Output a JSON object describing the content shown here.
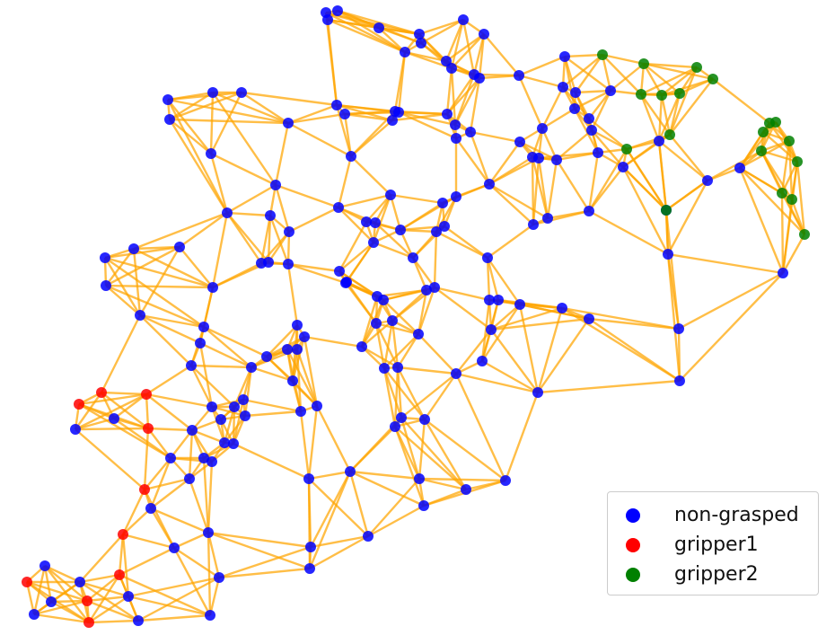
{
  "chart_data": {
    "type": "scatter",
    "title": "",
    "xlabel": "",
    "ylabel": "",
    "axes_visible": false,
    "grid": false,
    "legend_placement": "bottom-right",
    "edge_color": "#FFA500",
    "series": [
      {
        "name": "non-grasped",
        "color": "#0000FF",
        "points": [
          [
            363,
            14
          ],
          [
            376,
            12
          ],
          [
            365,
            22
          ],
          [
            422,
            31
          ],
          [
            516,
            22
          ],
          [
            467,
            38
          ],
          [
            539,
            38
          ],
          [
            469,
            48
          ],
          [
            451,
            58
          ],
          [
            497,
            68
          ],
          [
            503,
            76
          ],
          [
            528,
            83
          ],
          [
            534,
            87
          ],
          [
            578,
            84
          ],
          [
            629,
            63
          ],
          [
            627,
            97
          ],
          [
            641,
            103
          ],
          [
            680,
            101
          ],
          [
            187,
            111
          ],
          [
            237,
            103
          ],
          [
            269,
            103
          ],
          [
            189,
            133
          ],
          [
            321,
            137
          ],
          [
            375,
            117
          ],
          [
            384,
            127
          ],
          [
            440,
            124
          ],
          [
            444,
            125
          ],
          [
            437,
            134
          ],
          [
            498,
            127
          ],
          [
            507,
            139
          ],
          [
            508,
            154
          ],
          [
            524,
            147
          ],
          [
            579,
            158
          ],
          [
            604,
            143
          ],
          [
            640,
            121
          ],
          [
            656,
            132
          ],
          [
            659,
            145
          ],
          [
            734,
            157
          ],
          [
            666,
            170
          ],
          [
            694,
            186
          ],
          [
            235,
            171
          ],
          [
            391,
            174
          ],
          [
            307,
            206
          ],
          [
            435,
            217
          ],
          [
            545,
            205
          ],
          [
            508,
            219
          ],
          [
            493,
            226
          ],
          [
            593,
            175
          ],
          [
            600,
            176
          ],
          [
            620,
            178
          ],
          [
            656,
            235
          ],
          [
            788,
            201
          ],
          [
            824,
            187
          ],
          [
            872,
            304
          ],
          [
            253,
            237
          ],
          [
            301,
            240
          ],
          [
            377,
            231
          ],
          [
            408,
            247
          ],
          [
            418,
            248
          ],
          [
            446,
            256
          ],
          [
            486,
            258
          ],
          [
            495,
            252
          ],
          [
            322,
            258
          ],
          [
            416,
            270
          ],
          [
            460,
            287
          ],
          [
            594,
            250
          ],
          [
            610,
            243
          ],
          [
            149,
            277
          ],
          [
            117,
            287
          ],
          [
            200,
            275
          ],
          [
            291,
            293
          ],
          [
            299,
            292
          ],
          [
            321,
            294
          ],
          [
            378,
            302
          ],
          [
            543,
            287
          ],
          [
            118,
            318
          ],
          [
            237,
            320
          ],
          [
            385,
            315
          ],
          [
            386,
            314
          ],
          [
            420,
            330
          ],
          [
            427,
            334
          ],
          [
            475,
            323
          ],
          [
            484,
            320
          ],
          [
            545,
            334
          ],
          [
            555,
            334
          ],
          [
            579,
            339
          ],
          [
            626,
            343
          ],
          [
            656,
            355
          ],
          [
            156,
            351
          ],
          [
            227,
            364
          ],
          [
            331,
            362
          ],
          [
            339,
            375
          ],
          [
            320,
            389
          ],
          [
            331,
            389
          ],
          [
            223,
            382
          ],
          [
            213,
            407
          ],
          [
            297,
            397
          ],
          [
            280,
            409
          ],
          [
            403,
            386
          ],
          [
            419,
            360
          ],
          [
            437,
            357
          ],
          [
            466,
            372
          ],
          [
            547,
            367
          ],
          [
            428,
            410
          ],
          [
            443,
            409
          ],
          [
            508,
            416
          ],
          [
            537,
            402
          ],
          [
            599,
            437
          ],
          [
            756,
            366
          ],
          [
            757,
            424
          ],
          [
            127,
            466
          ],
          [
            236,
            453
          ],
          [
            271,
            445
          ],
          [
            261,
            453
          ],
          [
            326,
            424
          ],
          [
            353,
            452
          ],
          [
            335,
            458
          ],
          [
            273,
            463
          ],
          [
            246,
            467
          ],
          [
            214,
            479
          ],
          [
            250,
            493
          ],
          [
            260,
            494
          ],
          [
            447,
            465
          ],
          [
            473,
            467
          ],
          [
            440,
            475
          ],
          [
            84,
            478
          ],
          [
            190,
            510
          ],
          [
            227,
            510
          ],
          [
            236,
            514
          ],
          [
            211,
            533
          ],
          [
            344,
            533
          ],
          [
            390,
            525
          ],
          [
            467,
            533
          ],
          [
            519,
            545
          ],
          [
            563,
            535
          ],
          [
            168,
            566
          ],
          [
            472,
            563
          ],
          [
            194,
            610
          ],
          [
            232,
            593
          ],
          [
            346,
            609
          ],
          [
            410,
            597
          ],
          [
            345,
            633
          ],
          [
            50,
            630
          ],
          [
            89,
            648
          ],
          [
            244,
            643
          ],
          [
            143,
            664
          ],
          [
            38,
            684
          ],
          [
            57,
            670
          ],
          [
            154,
            691
          ],
          [
            234,
            685
          ],
          [
            744,
            283
          ],
          [
            742,
            234
          ]
        ]
      },
      {
        "name": "gripper1",
        "color": "#FF0000",
        "points": [
          [
            88,
            450
          ],
          [
            113,
            437
          ],
          [
            163,
            439
          ],
          [
            165,
            477
          ],
          [
            161,
            545
          ],
          [
            137,
            595
          ],
          [
            133,
            640
          ],
          [
            30,
            648
          ],
          [
            97,
            669
          ],
          [
            99,
            693
          ]
        ]
      },
      {
        "name": "gripper2",
        "color": "#008000",
        "points": [
          [
            671,
            61
          ],
          [
            717,
            71
          ],
          [
            776,
            75
          ],
          [
            794,
            88
          ],
          [
            714,
            105
          ],
          [
            737,
            106
          ],
          [
            757,
            104
          ],
          [
            746,
            150
          ],
          [
            698,
            166
          ],
          [
            857,
            137
          ],
          [
            864,
            136
          ],
          [
            850,
            147
          ],
          [
            879,
            157
          ],
          [
            848,
            168
          ],
          [
            888,
            180
          ],
          [
            871,
            215
          ],
          [
            882,
            222
          ],
          [
            896,
            261
          ],
          [
            742,
            234
          ]
        ]
      }
    ]
  },
  "legend": {
    "items": [
      {
        "label": "non-grasped",
        "color": "#0000FF"
      },
      {
        "label": "gripper1",
        "color": "#FF0000"
      },
      {
        "label": "gripper2",
        "color": "#008000"
      }
    ]
  }
}
